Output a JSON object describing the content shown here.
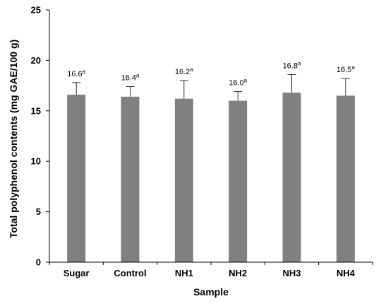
{
  "chart_data": {
    "type": "bar",
    "title": "",
    "xlabel": "Sample",
    "ylabel": "Total polyphenol contents (mg GAE/100 g)",
    "categories": [
      "Sugar",
      "Control",
      "NH1",
      "NH2",
      "NH3",
      "NH4"
    ],
    "values": [
      16.6,
      16.4,
      16.2,
      16.0,
      16.8,
      16.5
    ],
    "errors": [
      1.2,
      1.0,
      1.8,
      0.9,
      1.8,
      1.7
    ],
    "labels": [
      "16.6",
      "16.4",
      "16.2",
      "16.0",
      "16.8",
      "16.5"
    ],
    "superscripts": [
      "a",
      "a",
      "a",
      "a",
      "a",
      "a"
    ],
    "ylim": [
      0,
      25
    ],
    "yticks": [
      0,
      5,
      10,
      15,
      20,
      25
    ],
    "grid": false,
    "bar_color": "#808080"
  }
}
